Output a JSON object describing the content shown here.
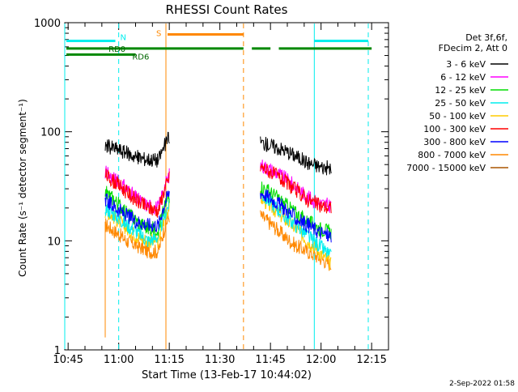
{
  "chart_data": {
    "type": "line",
    "title": "RHESSI Count Rates",
    "xlabel": "Start Time (13-Feb-17 10:44:02)",
    "ylabel": "Count Rate (s⁻¹ detector segment⁻¹)",
    "y_scale": "log",
    "ylim": [
      1,
      1000
    ],
    "xlim_minutes_after_start": [
      0,
      96
    ],
    "x_tick_labels": [
      "10:45",
      "11:00",
      "11:15",
      "11:30",
      "11:45",
      "12:00",
      "12:15"
    ],
    "x_tick_values_minutes": [
      1,
      16,
      31,
      46,
      61,
      76,
      91
    ],
    "y_tick_labels": [
      "1",
      "10",
      "100",
      "1000"
    ],
    "y_tick_values": [
      1,
      10,
      100,
      1000
    ],
    "grid": false,
    "legend_position": "right",
    "legend_header": [
      "Det 3f,6f,",
      "FDecim 2, Att 0"
    ],
    "series": [
      {
        "name": "3 - 6 keV",
        "color": "#000000",
        "seg1": [
          75,
          70,
          64,
          58,
          56,
          55,
          90
        ],
        "seg2": [
          80,
          74,
          68,
          60,
          52,
          48,
          46
        ]
      },
      {
        "name": "6 - 12 keV",
        "color": "#ff00ff",
        "seg1": [
          42,
          36,
          30,
          24,
          21,
          20,
          40
        ],
        "seg2": [
          50,
          44,
          38,
          31,
          25,
          22,
          21
        ]
      },
      {
        "name": "12 - 25 keV",
        "color": "#00dd00",
        "seg1": [
          28,
          23,
          18,
          15,
          13,
          13,
          26
        ],
        "seg2": [
          32,
          27,
          22,
          18,
          15,
          13,
          12
        ]
      },
      {
        "name": "25 - 50 keV",
        "color": "#00eeee",
        "seg1": [
          20,
          17,
          14,
          12,
          10,
          11,
          22
        ],
        "seg2": [
          27,
          22,
          17,
          14,
          11,
          9,
          7
        ]
      },
      {
        "name": "50 - 100 keV",
        "color": "#ffcc00",
        "seg1": [
          19,
          16,
          13,
          11,
          10,
          10,
          21
        ],
        "seg2": [
          25,
          20,
          16,
          13,
          10,
          8,
          6
        ]
      },
      {
        "name": "100 - 300 keV",
        "color": "#ff0000",
        "seg1": [
          40,
          34,
          28,
          23,
          20,
          19,
          38
        ],
        "seg2": [
          48,
          42,
          35,
          29,
          24,
          21,
          20
        ]
      },
      {
        "name": "300 - 800 keV",
        "color": "#0000ff",
        "seg1": [
          24,
          20,
          17,
          15,
          14,
          14,
          28
        ],
        "seg2": [
          28,
          24,
          20,
          16,
          14,
          12,
          11
        ]
      },
      {
        "name": "800 - 7000 keV",
        "color": "#ff8800",
        "seg1": [
          14,
          12,
          10,
          9,
          8,
          8,
          17
        ],
        "seg2": [
          17,
          14,
          11,
          9,
          8,
          7,
          6
        ]
      },
      {
        "name": "7000 - 15000 keV",
        "color": "#aa5500",
        "seg1": [],
        "seg2": []
      }
    ],
    "flag_bars": [
      {
        "label": "N",
        "color": "#00eeee",
        "value": 680,
        "ranges": [
          [
            0,
            15
          ],
          [
            73.5,
            90
          ]
        ]
      },
      {
        "label": "S",
        "color": "#ff8800",
        "value": 780,
        "ranges": [
          [
            30,
            53
          ]
        ]
      },
      {
        "label": "RD0",
        "color": "#008800",
        "value": 580,
        "ranges": [
          [
            0,
            53
          ],
          [
            55,
            61
          ],
          [
            63,
            91
          ]
        ]
      },
      {
        "label": "RD6",
        "color": "#008800",
        "value": 510,
        "ranges": [
          [
            0,
            21
          ]
        ]
      }
    ],
    "vertical_markers": [
      {
        "color": "#00eeee",
        "style": "solid",
        "x": 0
      },
      {
        "color": "#00eeee",
        "style": "dashed",
        "x": 16
      },
      {
        "color": "#ff8800",
        "style": "solid",
        "x": 30
      },
      {
        "color": "#ff8800",
        "style": "dashed",
        "x": 53
      },
      {
        "color": "#00eeee",
        "style": "solid",
        "x": 74
      },
      {
        "color": "#00eeee",
        "style": "dashed",
        "x": 90
      }
    ],
    "segments_minutes": [
      [
        12,
        31
      ],
      [
        58,
        79
      ]
    ],
    "orange_dropout_minutes": 12,
    "timestamp": "2-Sep-2022 01:58"
  }
}
